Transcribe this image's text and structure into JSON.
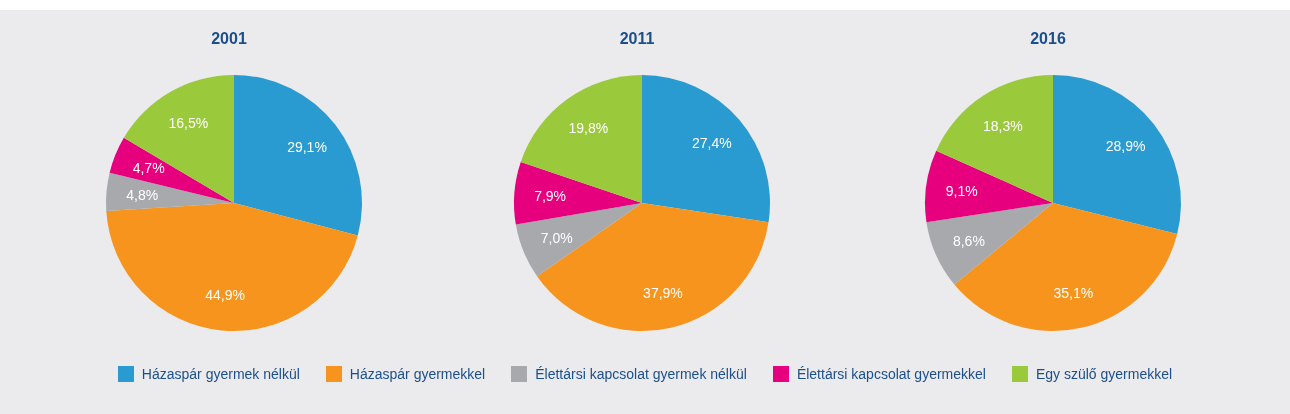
{
  "chart_data": [
    {
      "type": "pie",
      "title": "2001",
      "categories": [
        "Házaspár gyermek nélkül",
        "Házaspár gyermekkel",
        "Élettársi kapcsolat gyermek nélkül",
        "Élettársi kapcsolat gyermekkel",
        "Egy szülő gyermekkel"
      ],
      "values": [
        29.1,
        44.9,
        4.8,
        4.7,
        16.5
      ],
      "value_labels": [
        "29,1%",
        "44,9%",
        "4,8%",
        "4,7%",
        "16,5%"
      ],
      "colors": [
        "#2a9bd0",
        "#f7941d",
        "#a7a9ac",
        "#e6007e",
        "#9bc93c"
      ],
      "legend": "bottom"
    },
    {
      "type": "pie",
      "title": "2011",
      "categories": [
        null,
        null,
        null,
        null,
        null
      ],
      "values": [
        27.4,
        37.9,
        7.0,
        7.9,
        19.8
      ],
      "value_labels": [
        "27,4%",
        "37,9%",
        "7,0%",
        "7,9%",
        "19,8%"
      ],
      "colors": [
        "#2a9bd0",
        "#f7941d",
        "#a7a9ac",
        "#e6007e",
        "#9bc93c"
      ]
    },
    {
      "type": "pie",
      "title": "2016",
      "categories": [
        null,
        null,
        null,
        null,
        null
      ],
      "values": [
        28.9,
        35.1,
        8.6,
        9.1,
        18.3
      ],
      "value_labels": [
        "28,9%",
        "35,1%",
        "8,6%",
        "9,1%",
        "18,3%"
      ],
      "colors": [
        "#2a9bd0",
        "#f7941d",
        "#a7a9ac",
        "#e6007e",
        "#9bc93c"
      ]
    }
  ]
}
